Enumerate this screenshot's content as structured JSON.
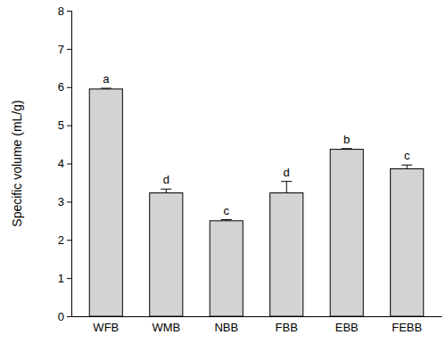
{
  "chart_data": {
    "type": "bar",
    "y_label": "Specific volume (mL/g)",
    "categories": [
      "WFB",
      "WMB",
      "NBB",
      "FBB",
      "EBB",
      "FEBB"
    ],
    "values": [
      5.95,
      3.23,
      2.5,
      3.23,
      4.37,
      3.86
    ],
    "errors": [
      0.02,
      0.1,
      0.03,
      0.3,
      0.02,
      0.1
    ],
    "annotations": [
      "a",
      "d",
      "c",
      "d",
      "b",
      "c"
    ],
    "color": "#d3d3d3",
    "ylim": [
      0,
      8
    ],
    "yticks": [
      0,
      1,
      2,
      3,
      4,
      5,
      6,
      7,
      8
    ],
    "grid": false
  }
}
